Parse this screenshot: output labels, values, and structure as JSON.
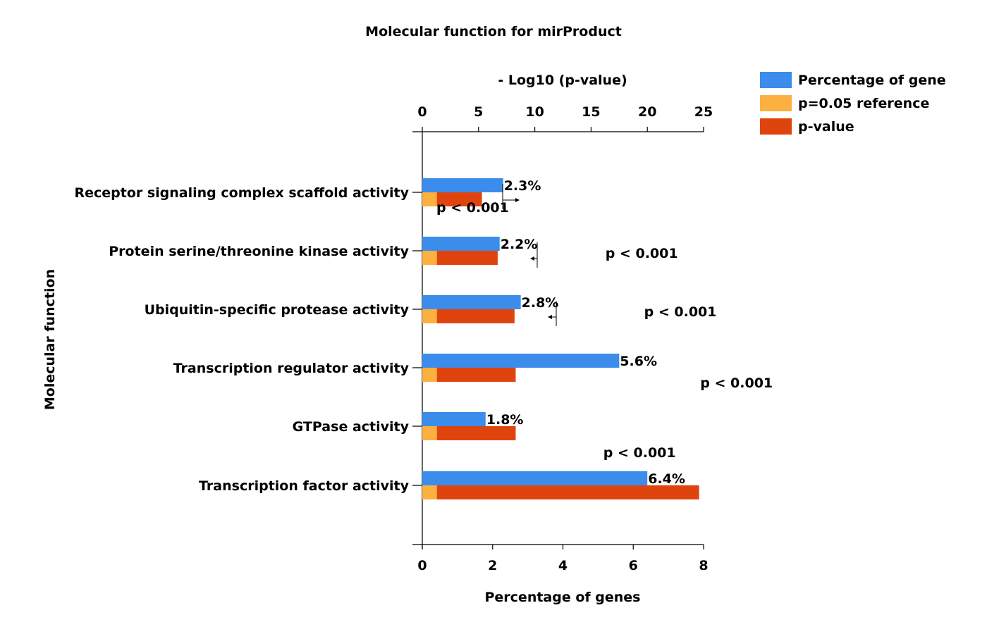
{
  "chart_data": {
    "type": "bar",
    "title": "Molecular function for mirProduct",
    "ylabel": "Molecular function",
    "top_axis": {
      "label": "- Log10 (p-value)",
      "range": [
        0,
        25
      ],
      "ticks": [
        0,
        5,
        10,
        15,
        20,
        25
      ]
    },
    "bottom_axis": {
      "label": "Percentage of genes",
      "range": [
        0,
        8
      ],
      "ticks": [
        0,
        2,
        4,
        6,
        8
      ]
    },
    "categories": [
      "Receptor signaling complex scaffold activity",
      "Protein serine/threonine kinase activity",
      "Ubiquitin-specific protease activity",
      "Transcription regulator activity",
      "GTPase activity",
      "Transcription factor activity"
    ],
    "series": [
      {
        "name": "Percentage of gene",
        "axis": "bottom",
        "color": "#3C8CEC",
        "values": [
          2.3,
          2.2,
          2.8,
          5.6,
          1.8,
          6.4
        ],
        "labels": [
          "2.3%",
          "2.2%",
          "2.8%",
          "5.6%",
          "1.8%",
          "6.4%"
        ]
      },
      {
        "name": "p=0.05 reference",
        "axis": "top",
        "color": "#FBB040",
        "values": [
          1.3,
          1.3,
          1.3,
          1.3,
          1.3,
          1.3
        ]
      },
      {
        "name": "p-value",
        "axis": "top",
        "color": "#E0440E",
        "values": [
          5.3,
          6.7,
          8.2,
          8.3,
          8.3,
          24.6
        ]
      }
    ],
    "pvalue_labels": [
      "p < 0.001",
      "p < 0.001",
      "p < 0.001",
      "p < 0.001",
      "p < 0.001",
      ""
    ],
    "legend_position": "top-right",
    "grid": false
  }
}
